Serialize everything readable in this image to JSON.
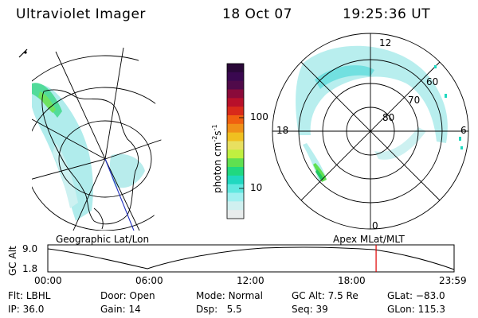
{
  "header": {
    "instrument": "Ultraviolet Imager",
    "date": "18 Oct 07",
    "time": "19:25:36 UT"
  },
  "colorbar": {
    "unit_main": "photon cm",
    "unit_sup1": "-2",
    "unit_mid": "s",
    "unit_sup2": "-1",
    "ticks": [
      "100",
      "10"
    ],
    "colors": [
      "#2a0838",
      "#3a0850",
      "#500a4a",
      "#8a0a3a",
      "#b8102a",
      "#d82a1a",
      "#f06010",
      "#f09018",
      "#f0c020",
      "#e8e060",
      "#c0f040",
      "#60e050",
      "#20d880",
      "#20d8c0",
      "#60e8e0",
      "#a0f0f0",
      "#d0f0f0",
      "#e8ecec"
    ]
  },
  "left_map": {
    "caption": "Geographic Lat/Lon"
  },
  "right_map": {
    "caption": "Apex MLat/MLT",
    "lat_labels": [
      "60",
      "70",
      "80"
    ],
    "mlt_labels": [
      "12",
      "18",
      "6",
      "0"
    ]
  },
  "altitude_plot": {
    "ylabel": "GC Alt",
    "ytick_high": "9.0",
    "ytick_low": "1.8",
    "xticks": [
      "00:00",
      "06:00",
      "12:00",
      "18:00",
      "23:59"
    ],
    "marker_color": "#e00000",
    "current_fraction": 0.808
  },
  "status": {
    "filter_label": "Flt:",
    "filter_value": "LBHL",
    "ip_label": "IP:",
    "ip_value": "36.0",
    "door_label": "Door:",
    "door_value": "Open",
    "gain_label": "Gain:",
    "gain_value": "14",
    "mode_label": "Mode:",
    "mode_value": "Normal",
    "dsp_label": "Dsp:",
    "dsp_value": "5.5",
    "gcalt_label": "GC Alt:",
    "gcalt_value": "7.5 Re",
    "seq_label": "Seq:",
    "seq_value": "39",
    "glat_label": "GLat:",
    "glat_value": "−83.0",
    "glon_label": "GLon:",
    "glon_value": "115.3"
  }
}
